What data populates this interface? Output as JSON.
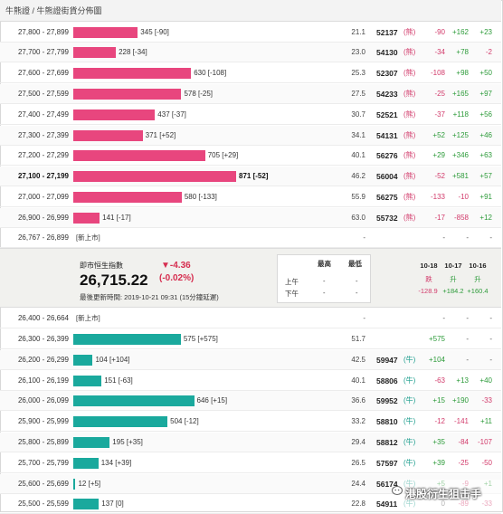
{
  "breadcrumb": "牛熊證 / 牛熊證街貨分佈圖",
  "colors": {
    "bear_bar": "#e8467e",
    "bull_bar": "#1aa99d",
    "negative": "#d23b6b",
    "positive": "#2d9b3a"
  },
  "bear_rows": [
    {
      "range": "27,800 - 27,899",
      "bar_value": 345,
      "label": "345 [-90]",
      "pct": "21.1",
      "code": "52137",
      "kind": "(熊)",
      "c1": "-90",
      "c2": "+162",
      "c3": "+23"
    },
    {
      "range": "27,700 - 27,799",
      "bar_value": 228,
      "label": "228 [-34]",
      "pct": "23.0",
      "code": "54130",
      "kind": "(熊)",
      "c1": "-34",
      "c2": "+78",
      "c3": "-2"
    },
    {
      "range": "27,600 - 27,699",
      "bar_value": 630,
      "label": "630 [-108]",
      "pct": "25.3",
      "code": "52307",
      "kind": "(熊)",
      "c1": "-108",
      "c2": "+98",
      "c3": "+50"
    },
    {
      "range": "27,500 - 27,599",
      "bar_value": 578,
      "label": "578 [-25]",
      "pct": "27.5",
      "code": "54233",
      "kind": "(熊)",
      "c1": "-25",
      "c2": "+165",
      "c3": "+97"
    },
    {
      "range": "27,400 - 27,499",
      "bar_value": 437,
      "label": "437 [-37]",
      "pct": "30.7",
      "code": "52521",
      "kind": "(熊)",
      "c1": "-37",
      "c2": "+118",
      "c3": "+56"
    },
    {
      "range": "27,300 - 27,399",
      "bar_value": 371,
      "label": "371 [+52]",
      "pct": "34.1",
      "code": "54131",
      "kind": "(熊)",
      "c1": "+52",
      "c2": "+125",
      "c3": "+46"
    },
    {
      "range": "27,200 - 27,299",
      "bar_value": 705,
      "label": "705 [+29]",
      "pct": "40.1",
      "code": "56276",
      "kind": "(熊)",
      "c1": "+29",
      "c2": "+346",
      "c3": "+63"
    },
    {
      "range": "27,100 - 27,199",
      "bar_value": 871,
      "label": "871 [-52]",
      "pct": "46.2",
      "code": "56004",
      "kind": "(熊)",
      "c1": "-52",
      "c2": "+581",
      "c3": "+57",
      "bold": true
    },
    {
      "range": "27,000 - 27,099",
      "bar_value": 580,
      "label": "580 [-133]",
      "pct": "55.9",
      "code": "56275",
      "kind": "(熊)",
      "c1": "-133",
      "c2": "-10",
      "c3": "+91"
    },
    {
      "range": "26,900 - 26,999",
      "bar_value": 141,
      "label": "141 [-17]",
      "pct": "63.0",
      "code": "55732",
      "kind": "(熊)",
      "c1": "-17",
      "c2": "-858",
      "c3": "+12"
    }
  ],
  "bear_new_row": {
    "range": "26,767 - 26,899",
    "label": "[新上市]",
    "c_dash": "-",
    "c1": "-",
    "c2": "-",
    "c3": "-"
  },
  "index_panel": {
    "title": "即市恒生指數",
    "value": "26,715.22",
    "change": "▼-4.36",
    "change_pct": "(-0.02%)",
    "updated": "最後更新時間: 2019-10-21 09:31 (15分鐘延遲)",
    "hl_header_high": "最高",
    "hl_header_low": "最低",
    "am_label": "上午",
    "pm_label": "下午",
    "am_high": "-",
    "am_low": "-",
    "pm_high": "-",
    "pm_low": "-",
    "dates": [
      "10-18",
      "10-17",
      "10-16"
    ],
    "date_trend": [
      "跌",
      "升",
      "升"
    ],
    "date_values": [
      "-128.9",
      "+184.2",
      "+160.4"
    ]
  },
  "bull_new_row": {
    "range": "26,400 - 26,664",
    "label": "[新上市]",
    "c_dash": "-",
    "c1": "-",
    "c2": "-",
    "c3": "-"
  },
  "bull_rows": [
    {
      "range": "26,300 - 26,399",
      "bar_value": 575,
      "label": "575 [+575]",
      "pct": "51.7",
      "code": "",
      "kind": "",
      "c1": "+575",
      "c2": "-",
      "c3": "-"
    },
    {
      "range": "26,200 - 26,299",
      "bar_value": 104,
      "label": "104 [+104]",
      "pct": "42.5",
      "code": "59947",
      "kind": "(牛)",
      "c1": "+104",
      "c2": "-",
      "c3": "-"
    },
    {
      "range": "26,100 - 26,199",
      "bar_value": 151,
      "label": "151 [-63]",
      "pct": "40.1",
      "code": "58806",
      "kind": "(牛)",
      "c1": "-63",
      "c2": "+13",
      "c3": "+40"
    },
    {
      "range": "26,000 - 26,099",
      "bar_value": 646,
      "label": "646 [+15]",
      "pct": "36.6",
      "code": "59952",
      "kind": "(牛)",
      "c1": "+15",
      "c2": "+190",
      "c3": "-33"
    },
    {
      "range": "25,900 - 25,999",
      "bar_value": 504,
      "label": "504 [-12]",
      "pct": "33.2",
      "code": "58810",
      "kind": "(牛)",
      "c1": "-12",
      "c2": "-141",
      "c3": "+11"
    },
    {
      "range": "25,800 - 25,899",
      "bar_value": 195,
      "label": "195 [+35]",
      "pct": "29.4",
      "code": "58812",
      "kind": "(牛)",
      "c1": "+35",
      "c2": "-84",
      "c3": "-107"
    },
    {
      "range": "25,700 - 25,799",
      "bar_value": 134,
      "label": "134 [+39]",
      "pct": "26.5",
      "code": "57597",
      "kind": "(牛)",
      "c1": "+39",
      "c2": "-25",
      "c3": "-50"
    },
    {
      "range": "25,600 - 25,699",
      "bar_value": 12,
      "label": "12 [+5]",
      "pct": "24.4",
      "code": "56174",
      "kind": "(牛)",
      "c1": "+5",
      "c2": "-9",
      "c3": "+1"
    },
    {
      "range": "25,500 - 25,599",
      "bar_value": 137,
      "label": "137 [0]",
      "pct": "22.8",
      "code": "54911",
      "kind": "(牛)",
      "c1": "0",
      "c2": "-89",
      "c3": "-33"
    }
  ],
  "watermark": "港股衍生狙击手"
}
